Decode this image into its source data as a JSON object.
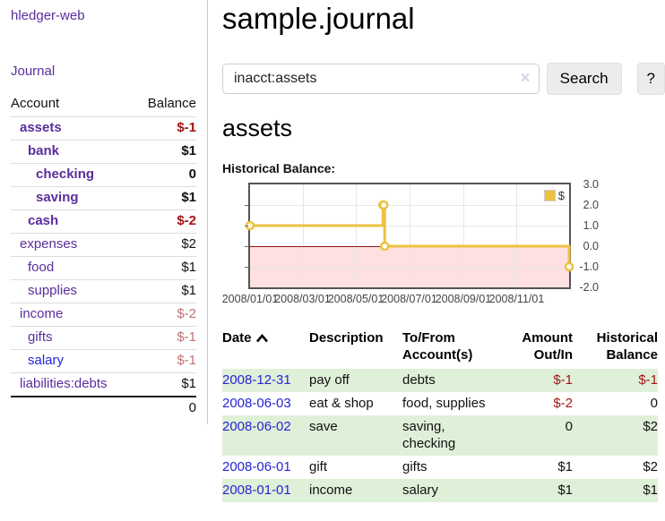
{
  "sidebar": {
    "app_title": "hledger-web",
    "journal_link": "Journal",
    "accounts_header": {
      "account": "Account",
      "balance": "Balance"
    },
    "accounts": [
      {
        "name": "assets",
        "depth": 1,
        "bold": true,
        "balance": "$-1",
        "tone": "neg-strong",
        "link_style": "visited"
      },
      {
        "name": "bank",
        "depth": 2,
        "bold": true,
        "balance": "$1",
        "tone": "pos",
        "link_style": "visited"
      },
      {
        "name": "checking",
        "depth": 3,
        "bold": true,
        "balance": "0",
        "tone": "pos",
        "link_style": "visited"
      },
      {
        "name": "saving",
        "depth": 3,
        "bold": true,
        "balance": "$1",
        "tone": "pos",
        "link_style": "visited"
      },
      {
        "name": "cash",
        "depth": 2,
        "bold": true,
        "balance": "$-2",
        "tone": "neg-strong",
        "link_style": "visited"
      },
      {
        "name": "expenses",
        "depth": 1,
        "bold": false,
        "balance": "$2",
        "tone": "pos",
        "link_style": "visited"
      },
      {
        "name": "food",
        "depth": 2,
        "bold": false,
        "balance": "$1",
        "tone": "pos",
        "link_style": "visited"
      },
      {
        "name": "supplies",
        "depth": 2,
        "bold": false,
        "balance": "$1",
        "tone": "pos",
        "link_style": "visited"
      },
      {
        "name": "income",
        "depth": 1,
        "bold": false,
        "balance": "$-2",
        "tone": "neg-soft",
        "link_style": "visited"
      },
      {
        "name": "gifts",
        "depth": 2,
        "bold": false,
        "balance": "$-1",
        "tone": "neg-soft",
        "link_style": "visited"
      },
      {
        "name": "salary",
        "depth": 2,
        "bold": false,
        "balance": "$-1",
        "tone": "neg-soft",
        "link_style": "unvisited"
      },
      {
        "name": "liabilities:debts",
        "depth": 1,
        "bold": false,
        "balance": "$1",
        "tone": "pos",
        "link_style": "visited"
      }
    ],
    "total": "0"
  },
  "main": {
    "title": "sample.journal",
    "search": {
      "value": "inacct:assets",
      "clear_icon": "×",
      "button_label": "Search",
      "help_label": "?"
    },
    "account_heading": "assets",
    "chart_label": "Historical Balance:"
  },
  "chart_data": {
    "type": "line",
    "step": true,
    "title": "Historical Balance",
    "series": [
      {
        "name": "$",
        "color": "#edc240",
        "points": [
          {
            "date": "2008-01-01",
            "value": 1
          },
          {
            "date": "2008-06-01",
            "value": 2
          },
          {
            "date": "2008-06-02",
            "value": 2
          },
          {
            "date": "2008-06-03",
            "value": 0
          },
          {
            "date": "2008-12-31",
            "value": -1
          }
        ]
      }
    ],
    "xlim": [
      "2008-01-01",
      "2008-12-31"
    ],
    "ylim": [
      -2,
      3
    ],
    "x_ticks": [
      "2008/01/01",
      "2008/03/01",
      "2008/05/01",
      "2008/07/01",
      "2008/09/01",
      "2008/11/01"
    ],
    "y_ticks": [
      "3.0",
      "2.0",
      "1.0",
      "0.0",
      "-1.0",
      "-2.0"
    ],
    "grid": true,
    "legend": {
      "label": "$",
      "position": "top-right"
    },
    "negative_region_color": "rgba(255,0,0,0.12)",
    "zero_line_color": "#8b1a1a"
  },
  "register": {
    "headers": {
      "date": "Date",
      "description": "Description",
      "accounts": "To/From Account(s)",
      "amount": "Amount Out/In",
      "balance": "Historical Balance"
    },
    "rows": [
      {
        "date": "2008-12-31",
        "description": "pay off",
        "accounts": "debts",
        "amount": "$-1",
        "amount_neg": true,
        "balance": "$-1",
        "balance_neg": true
      },
      {
        "date": "2008-06-03",
        "description": "eat & shop",
        "accounts": "food, supplies",
        "amount": "$-2",
        "amount_neg": true,
        "balance": "0",
        "balance_neg": false
      },
      {
        "date": "2008-06-02",
        "description": "save",
        "accounts": "saving, checking",
        "amount": "0",
        "amount_neg": false,
        "balance": "$2",
        "balance_neg": false
      },
      {
        "date": "2008-06-01",
        "description": "gift",
        "accounts": "gifts",
        "amount": "$1",
        "amount_neg": false,
        "balance": "$2",
        "balance_neg": false
      },
      {
        "date": "2008-01-01",
        "description": "income",
        "accounts": "salary",
        "amount": "$1",
        "amount_neg": false,
        "balance": "$1",
        "balance_neg": false
      }
    ]
  }
}
